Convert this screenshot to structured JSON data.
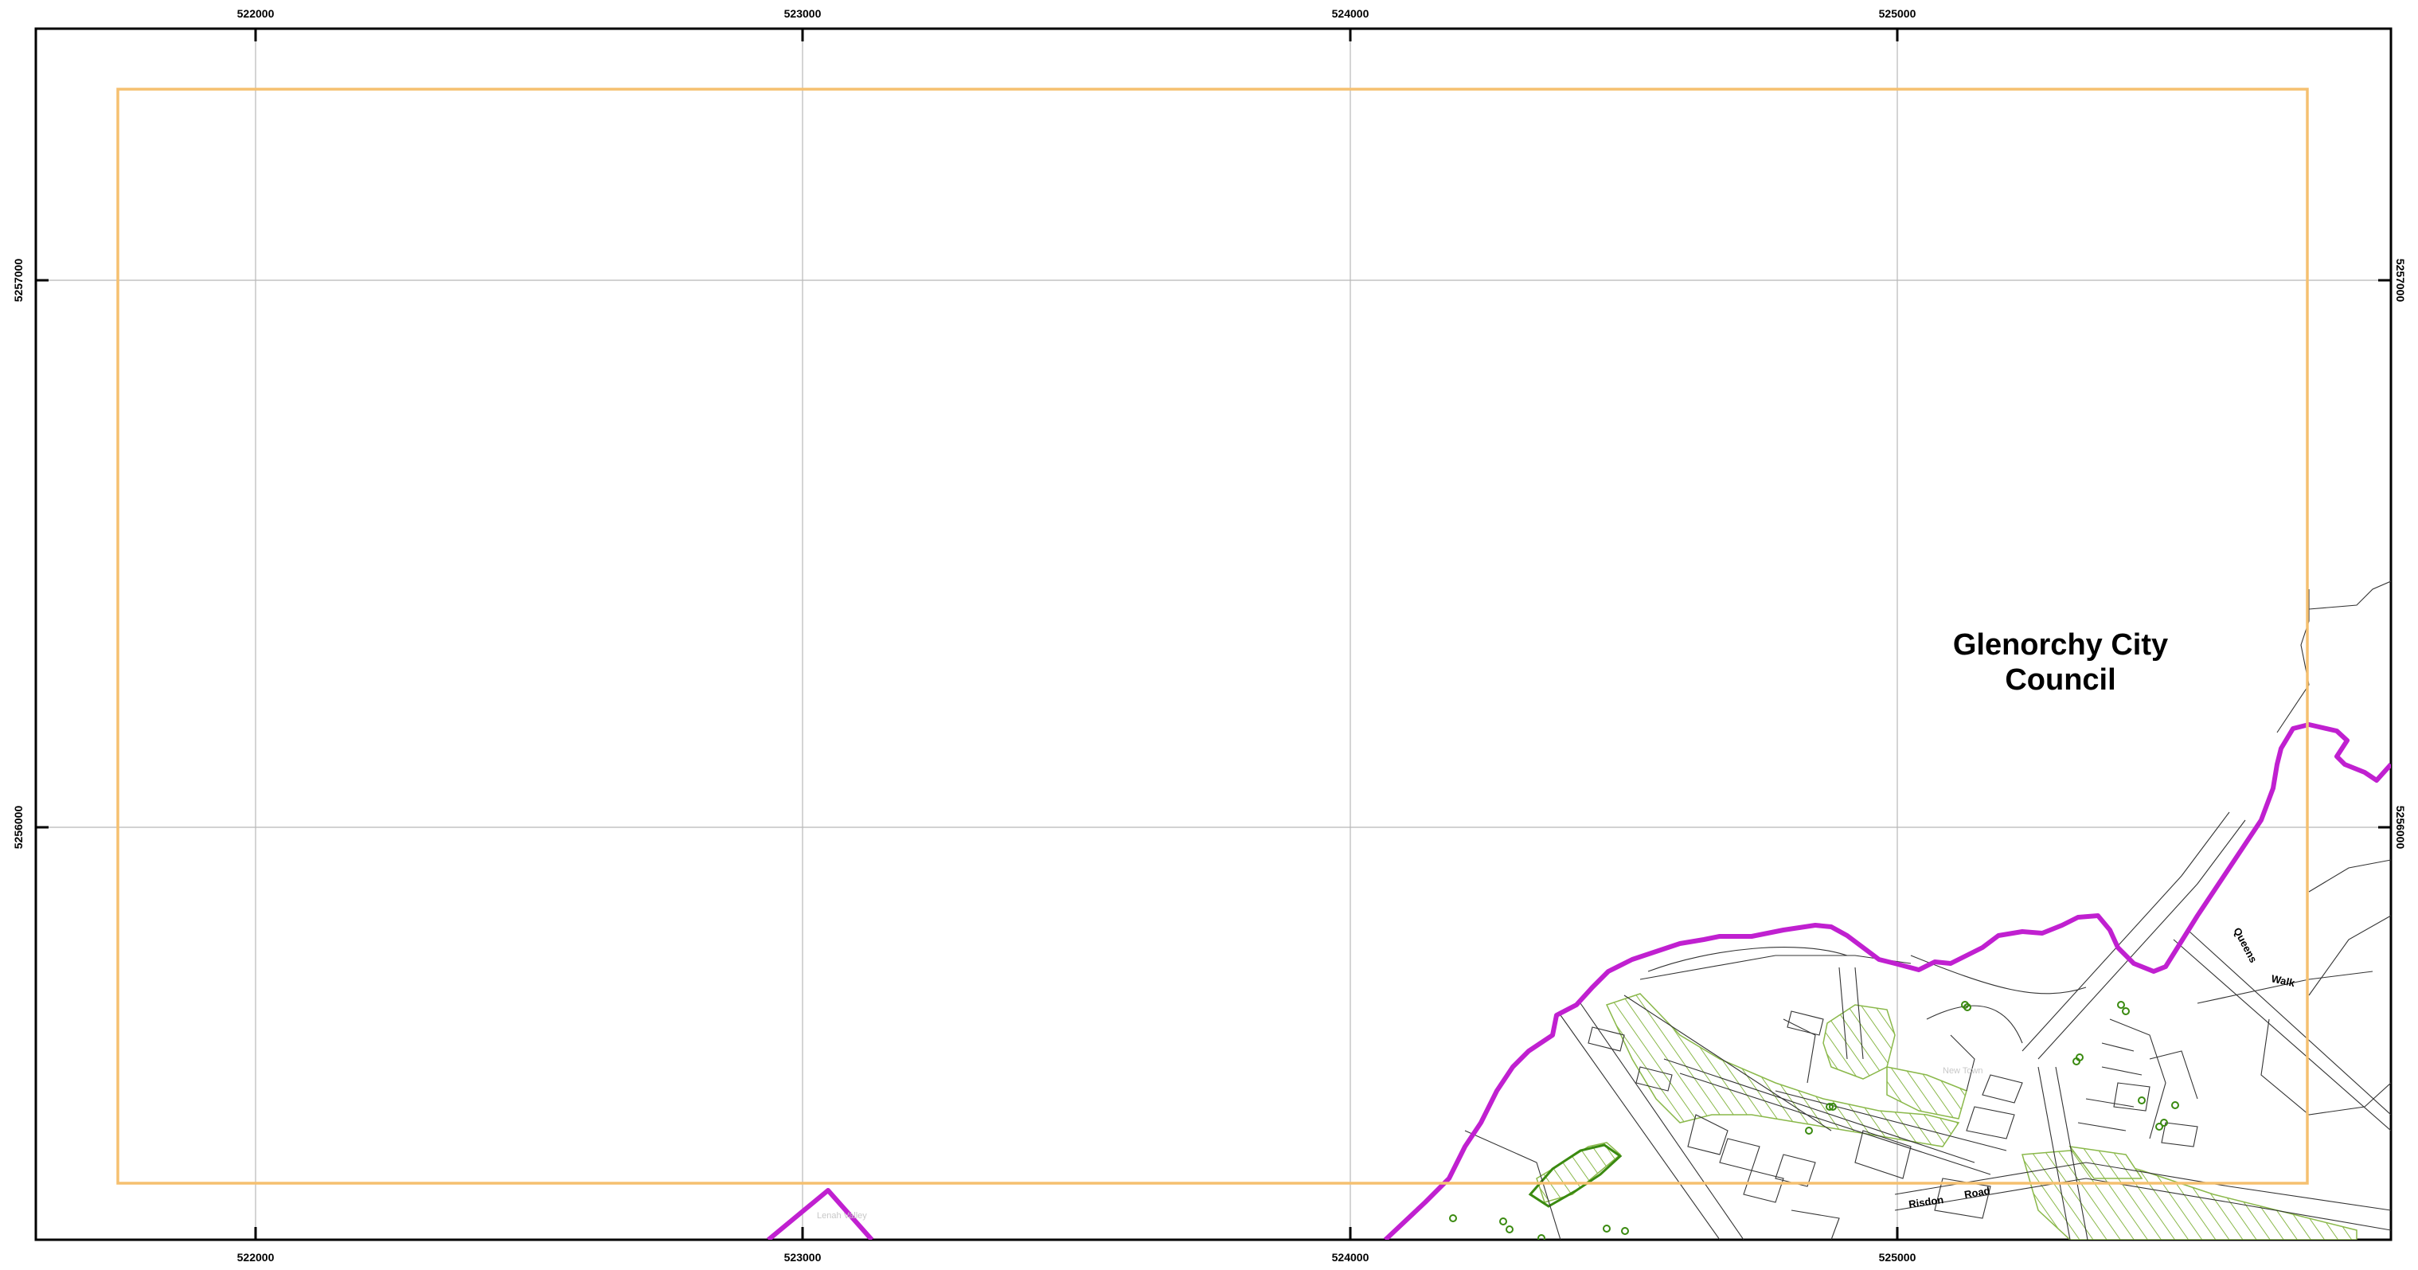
{
  "map": {
    "grid": {
      "x_ticks": [
        "522000",
        "523000",
        "524000",
        "525000"
      ],
      "y_ticks": [
        "5257000",
        "5256000"
      ]
    },
    "council_label": {
      "line1": "Glenorchy City",
      "line2": "Council"
    },
    "street_labels": {
      "queens": "Queens",
      "walk": "Walk",
      "risdon": "Risdon",
      "road": "Road"
    },
    "faint_labels": {
      "new_town": "New Town",
      "lenah_valley": "Lenah Valley"
    },
    "colors": {
      "council_boundary": "#c020d0",
      "extent_frame": "#f5c070",
      "grid_lines": "#b8b8b8",
      "cadastre": "#333333",
      "vegetation_hatch": "#8ab84a",
      "tree_points": "#3a8a10"
    }
  }
}
